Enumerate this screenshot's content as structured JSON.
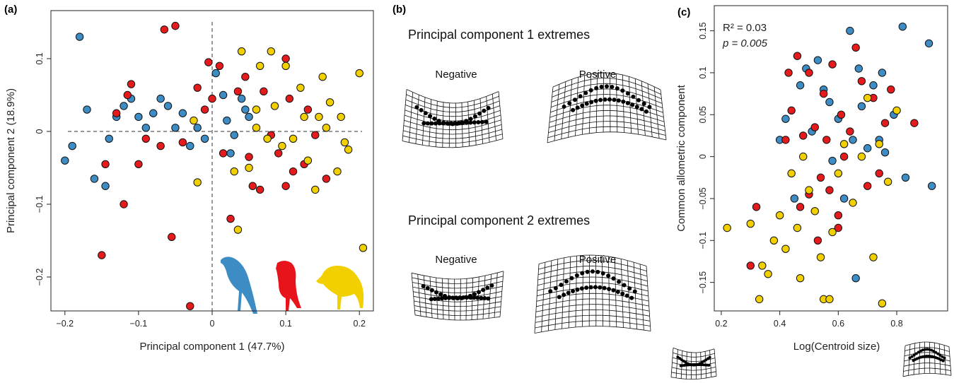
{
  "chart_data": [
    {
      "type": "scatter",
      "panel_label": "(a)",
      "x_label": "Principal component 1 (47.7%)",
      "y_label": "Principal component 2 (18.9%)",
      "zero_lines": true,
      "xlim": [
        -0.219,
        0.219
      ],
      "ylim": [
        -0.2466,
        0.166
      ],
      "xticks": [
        {
          "value": -0.2,
          "label": "−0.2"
        },
        {
          "value": -0.1,
          "label": "−0.1"
        },
        0,
        0.1,
        0.2
      ],
      "yticks": [
        {
          "value": -0.2,
          "label": "−0.2"
        },
        {
          "value": -0.1,
          "label": "−0.1"
        },
        0,
        0.1
      ],
      "series": [
        {
          "color": "#3d8cc4",
          "x": [
            -0.18,
            -0.2,
            -0.19,
            -0.17,
            -0.16,
            -0.145,
            -0.14,
            -0.13,
            -0.12,
            -0.11,
            -0.1,
            -0.09,
            -0.08,
            -0.07,
            -0.06,
            -0.04,
            -0.03,
            -0.02,
            -0.01,
            0.005,
            0.015,
            0.02,
            0.03,
            0.045,
            0.05,
            -0.05,
            0.04,
            0.025
          ],
          "values": [
            0.13,
            -0.04,
            -0.02,
            0.03,
            -0.065,
            -0.075,
            -0.01,
            0.02,
            0.035,
            0.045,
            0.02,
            0.005,
            0.025,
            0.045,
            0.035,
            0.025,
            -0.02,
            0.005,
            -0.01,
            0.08,
            0.05,
            0.015,
            -0.005,
            0.03,
            0.02,
            0.005,
            0.045,
            -0.03
          ]
        },
        {
          "color": "#e41a1c",
          "x": [
            -0.15,
            -0.145,
            -0.13,
            -0.12,
            -0.115,
            -0.11,
            -0.1,
            -0.09,
            -0.07,
            -0.065,
            -0.055,
            -0.05,
            -0.04,
            -0.03,
            -0.02,
            -0.01,
            -0.005,
            0.01,
            0.015,
            0.025,
            0.035,
            0.045,
            0.05,
            0.055,
            0.07,
            0.08,
            0.09,
            0.1,
            0.105,
            0.11,
            0.125,
            0.13,
            0.14,
            0.155,
            0.065,
            0.1,
            0.0
          ],
          "values": [
            -0.17,
            -0.045,
            0.025,
            -0.1,
            0.05,
            0.065,
            -0.045,
            -0.01,
            -0.02,
            0.14,
            -0.145,
            0.145,
            -0.015,
            -0.24,
            0.06,
            0.03,
            0.095,
            0.09,
            -0.03,
            -0.12,
            0.055,
            0.075,
            -0.035,
            -0.075,
            0.055,
            -0.005,
            -0.03,
            0.1,
            0.045,
            -0.055,
            -0.045,
            0.03,
            -0.005,
            -0.065,
            -0.08,
            -0.075,
            0.045
          ]
        },
        {
          "color": "#f2d000",
          "x": [
            -0.02,
            0.04,
            0.05,
            0.03,
            0.035,
            0.06,
            0.065,
            0.075,
            0.08,
            0.085,
            0.095,
            0.11,
            0.12,
            0.125,
            0.13,
            0.145,
            0.15,
            0.155,
            0.16,
            0.17,
            0.175,
            0.18,
            0.185,
            0.2,
            0.205,
            0.14,
            0.1,
            0.06,
            -0.025
          ],
          "values": [
            -0.07,
            0.11,
            -0.05,
            -0.055,
            -0.135,
            0.005,
            0.09,
            -0.01,
            0.11,
            0.035,
            -0.02,
            -0.01,
            0.06,
            0.02,
            -0.04,
            0.02,
            0.075,
            0.005,
            0.04,
            -0.055,
            0.02,
            -0.015,
            -0.025,
            0.08,
            -0.16,
            -0.08,
            0.09,
            0.03,
            0.015
          ]
        }
      ]
    },
    {
      "type": "scatter",
      "panel_label": "(c)",
      "x_label": "Log(Centroid size)",
      "y_label": "Common allometric component",
      "annotations": [
        "R² = 0.03",
        "p = 0.005"
      ],
      "xlim": [
        0.176,
        0.974
      ],
      "ylim": [
        -0.184,
        0.18
      ],
      "xticks": [
        0.2,
        0.4,
        0.6,
        0.8
      ],
      "yticks": [
        {
          "value": -0.15,
          "label": "−0.15"
        },
        {
          "value": -0.1,
          "label": "−0.1"
        },
        {
          "value": -0.05,
          "label": "−0.05"
        },
        0,
        0.05,
        0.1,
        0.15
      ],
      "series": [
        {
          "color": "#3d8cc4",
          "x": [
            0.4,
            0.42,
            0.45,
            0.47,
            0.49,
            0.51,
            0.53,
            0.55,
            0.57,
            0.6,
            0.62,
            0.64,
            0.65,
            0.67,
            0.68,
            0.7,
            0.72,
            0.75,
            0.76,
            0.79,
            0.82,
            0.83,
            0.91,
            0.92,
            0.58,
            0.74,
            0.66
          ],
          "values": [
            0.02,
            0.045,
            -0.05,
            0.085,
            0.105,
            0.03,
            0.115,
            0.08,
            0.065,
            0.045,
            -0.05,
            0.15,
            0.02,
            0.105,
            0.06,
            0.01,
            0.085,
            0.1,
            0.005,
            0.05,
            0.155,
            -0.025,
            0.135,
            -0.035,
            -0.005,
            0.02,
            -0.145
          ]
        },
        {
          "color": "#e41a1c",
          "x": [
            0.3,
            0.32,
            0.42,
            0.43,
            0.44,
            0.46,
            0.47,
            0.48,
            0.5,
            0.5,
            0.52,
            0.53,
            0.55,
            0.56,
            0.57,
            0.58,
            0.6,
            0.61,
            0.62,
            0.64,
            0.66,
            0.68,
            0.7,
            0.72,
            0.74,
            0.76,
            0.78,
            0.86,
            0.54,
            0.6
          ],
          "values": [
            -0.13,
            -0.06,
            0.02,
            0.1,
            0.055,
            0.12,
            -0.06,
            0.025,
            0.1,
            -0.045,
            0.035,
            -0.1,
            0.075,
            0.02,
            -0.04,
            0.11,
            -0.07,
            0.05,
            0.0,
            0.03,
            0.13,
            0.09,
            -0.035,
            0.07,
            -0.02,
            0.04,
            0.08,
            0.04,
            -0.025,
            -0.085
          ]
        },
        {
          "color": "#f2d000",
          "x": [
            0.22,
            0.3,
            0.33,
            0.34,
            0.36,
            0.38,
            0.4,
            0.42,
            0.44,
            0.46,
            0.47,
            0.5,
            0.52,
            0.54,
            0.55,
            0.57,
            0.58,
            0.6,
            0.62,
            0.65,
            0.68,
            0.7,
            0.72,
            0.74,
            0.75,
            0.77,
            0.8,
            0.48
          ],
          "values": [
            -0.085,
            -0.08,
            -0.17,
            -0.13,
            -0.14,
            -0.1,
            -0.07,
            -0.11,
            -0.02,
            -0.085,
            -0.145,
            -0.04,
            -0.065,
            -0.12,
            -0.17,
            -0.17,
            -0.09,
            -0.02,
            0.015,
            -0.055,
            0.0,
            0.07,
            -0.12,
            0.015,
            -0.175,
            -0.03,
            0.055,
            0.0
          ]
        }
      ]
    }
  ],
  "panel_b": {
    "panel_label": "(b)",
    "sections": [
      {
        "title": "Principal component 1 extremes",
        "negative": "Negative",
        "positive": "Positive"
      },
      {
        "title": "Principal component 2 extremes",
        "negative": "Negative",
        "positive": "Positive"
      }
    ]
  }
}
